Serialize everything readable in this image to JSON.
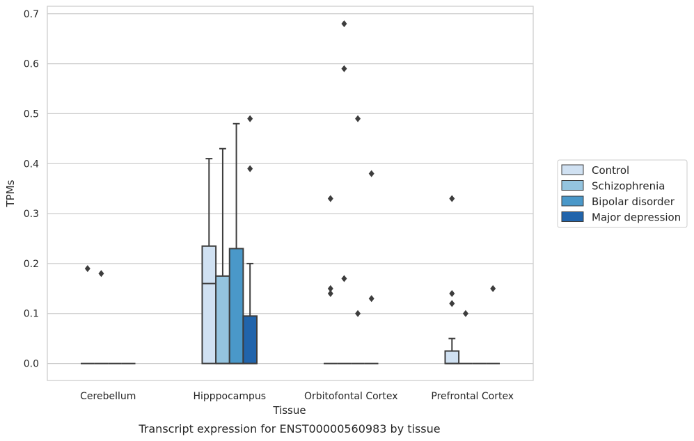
{
  "chart_data": {
    "type": "box",
    "title": "Transcript expression for ENST00000560983 by tissue",
    "xlabel": "Tissue",
    "ylabel": "TPMs",
    "ylim": [
      -0.034,
      0.715
    ],
    "yticks": [
      "0.0",
      "0.1",
      "0.2",
      "0.3",
      "0.4",
      "0.5",
      "0.6",
      "0.7"
    ],
    "categories": [
      "Cerebellum",
      "Hipppocampus",
      "Orbitofontal Cortex",
      "Prefrontal Cortex"
    ],
    "grid": true,
    "legend_position": "right",
    "series": [
      {
        "name": "Control",
        "color": "#d0e1f2",
        "boxes": [
          {
            "q1": 0,
            "median": 0,
            "q3": 0,
            "whisker_low": 0,
            "whisker_high": 0,
            "outliers": [
              0.19
            ]
          },
          {
            "q1": 0,
            "median": 0.16,
            "q3": 0.235,
            "whisker_low": 0,
            "whisker_high": 0.41,
            "outliers": []
          },
          {
            "q1": 0,
            "median": 0,
            "q3": 0,
            "whisker_low": 0,
            "whisker_high": 0,
            "outliers": [
              0.33,
              0.15,
              0.14
            ]
          },
          {
            "q1": 0,
            "median": 0,
            "q3": 0.025,
            "whisker_low": 0,
            "whisker_high": 0.05,
            "outliers": [
              0.33,
              0.14,
              0.12
            ]
          }
        ]
      },
      {
        "name": "Schizophrenia",
        "color": "#94c4df",
        "boxes": [
          {
            "q1": 0,
            "median": 0,
            "q3": 0,
            "whisker_low": 0,
            "whisker_high": 0,
            "outliers": [
              0.18
            ]
          },
          {
            "q1": 0,
            "median": 0,
            "q3": 0.175,
            "whisker_low": 0,
            "whisker_high": 0.43,
            "outliers": []
          },
          {
            "q1": 0,
            "median": 0,
            "q3": 0,
            "whisker_low": 0,
            "whisker_high": 0,
            "outliers": [
              0.68,
              0.59,
              0.17
            ]
          },
          {
            "q1": 0,
            "median": 0,
            "q3": 0,
            "whisker_low": 0,
            "whisker_high": 0,
            "outliers": [
              0.1
            ]
          }
        ]
      },
      {
        "name": "Bipolar disorder",
        "color": "#4a98c9",
        "boxes": [
          {
            "q1": 0,
            "median": 0,
            "q3": 0,
            "whisker_low": 0,
            "whisker_high": 0,
            "outliers": []
          },
          {
            "q1": 0,
            "median": 0,
            "q3": 0.23,
            "whisker_low": 0,
            "whisker_high": 0.48,
            "outliers": []
          },
          {
            "q1": 0,
            "median": 0,
            "q3": 0,
            "whisker_low": 0,
            "whisker_high": 0,
            "outliers": [
              0.49,
              0.1
            ]
          },
          {
            "q1": 0,
            "median": 0,
            "q3": 0,
            "whisker_low": 0,
            "whisker_high": 0,
            "outliers": []
          }
        ]
      },
      {
        "name": "Major depression",
        "color": "#2164ab",
        "boxes": [
          {
            "q1": 0,
            "median": 0,
            "q3": 0,
            "whisker_low": 0,
            "whisker_high": 0,
            "outliers": []
          },
          {
            "q1": 0,
            "median": 0,
            "q3": 0.095,
            "whisker_low": 0,
            "whisker_high": 0.2,
            "outliers": [
              0.49,
              0.39
            ]
          },
          {
            "q1": 0,
            "median": 0,
            "q3": 0,
            "whisker_low": 0,
            "whisker_high": 0,
            "outliers": [
              0.38,
              0.13
            ]
          },
          {
            "q1": 0,
            "median": 0,
            "q3": 0,
            "whisker_low": 0,
            "whisker_high": 0,
            "outliers": [
              0.15
            ]
          }
        ]
      }
    ]
  }
}
